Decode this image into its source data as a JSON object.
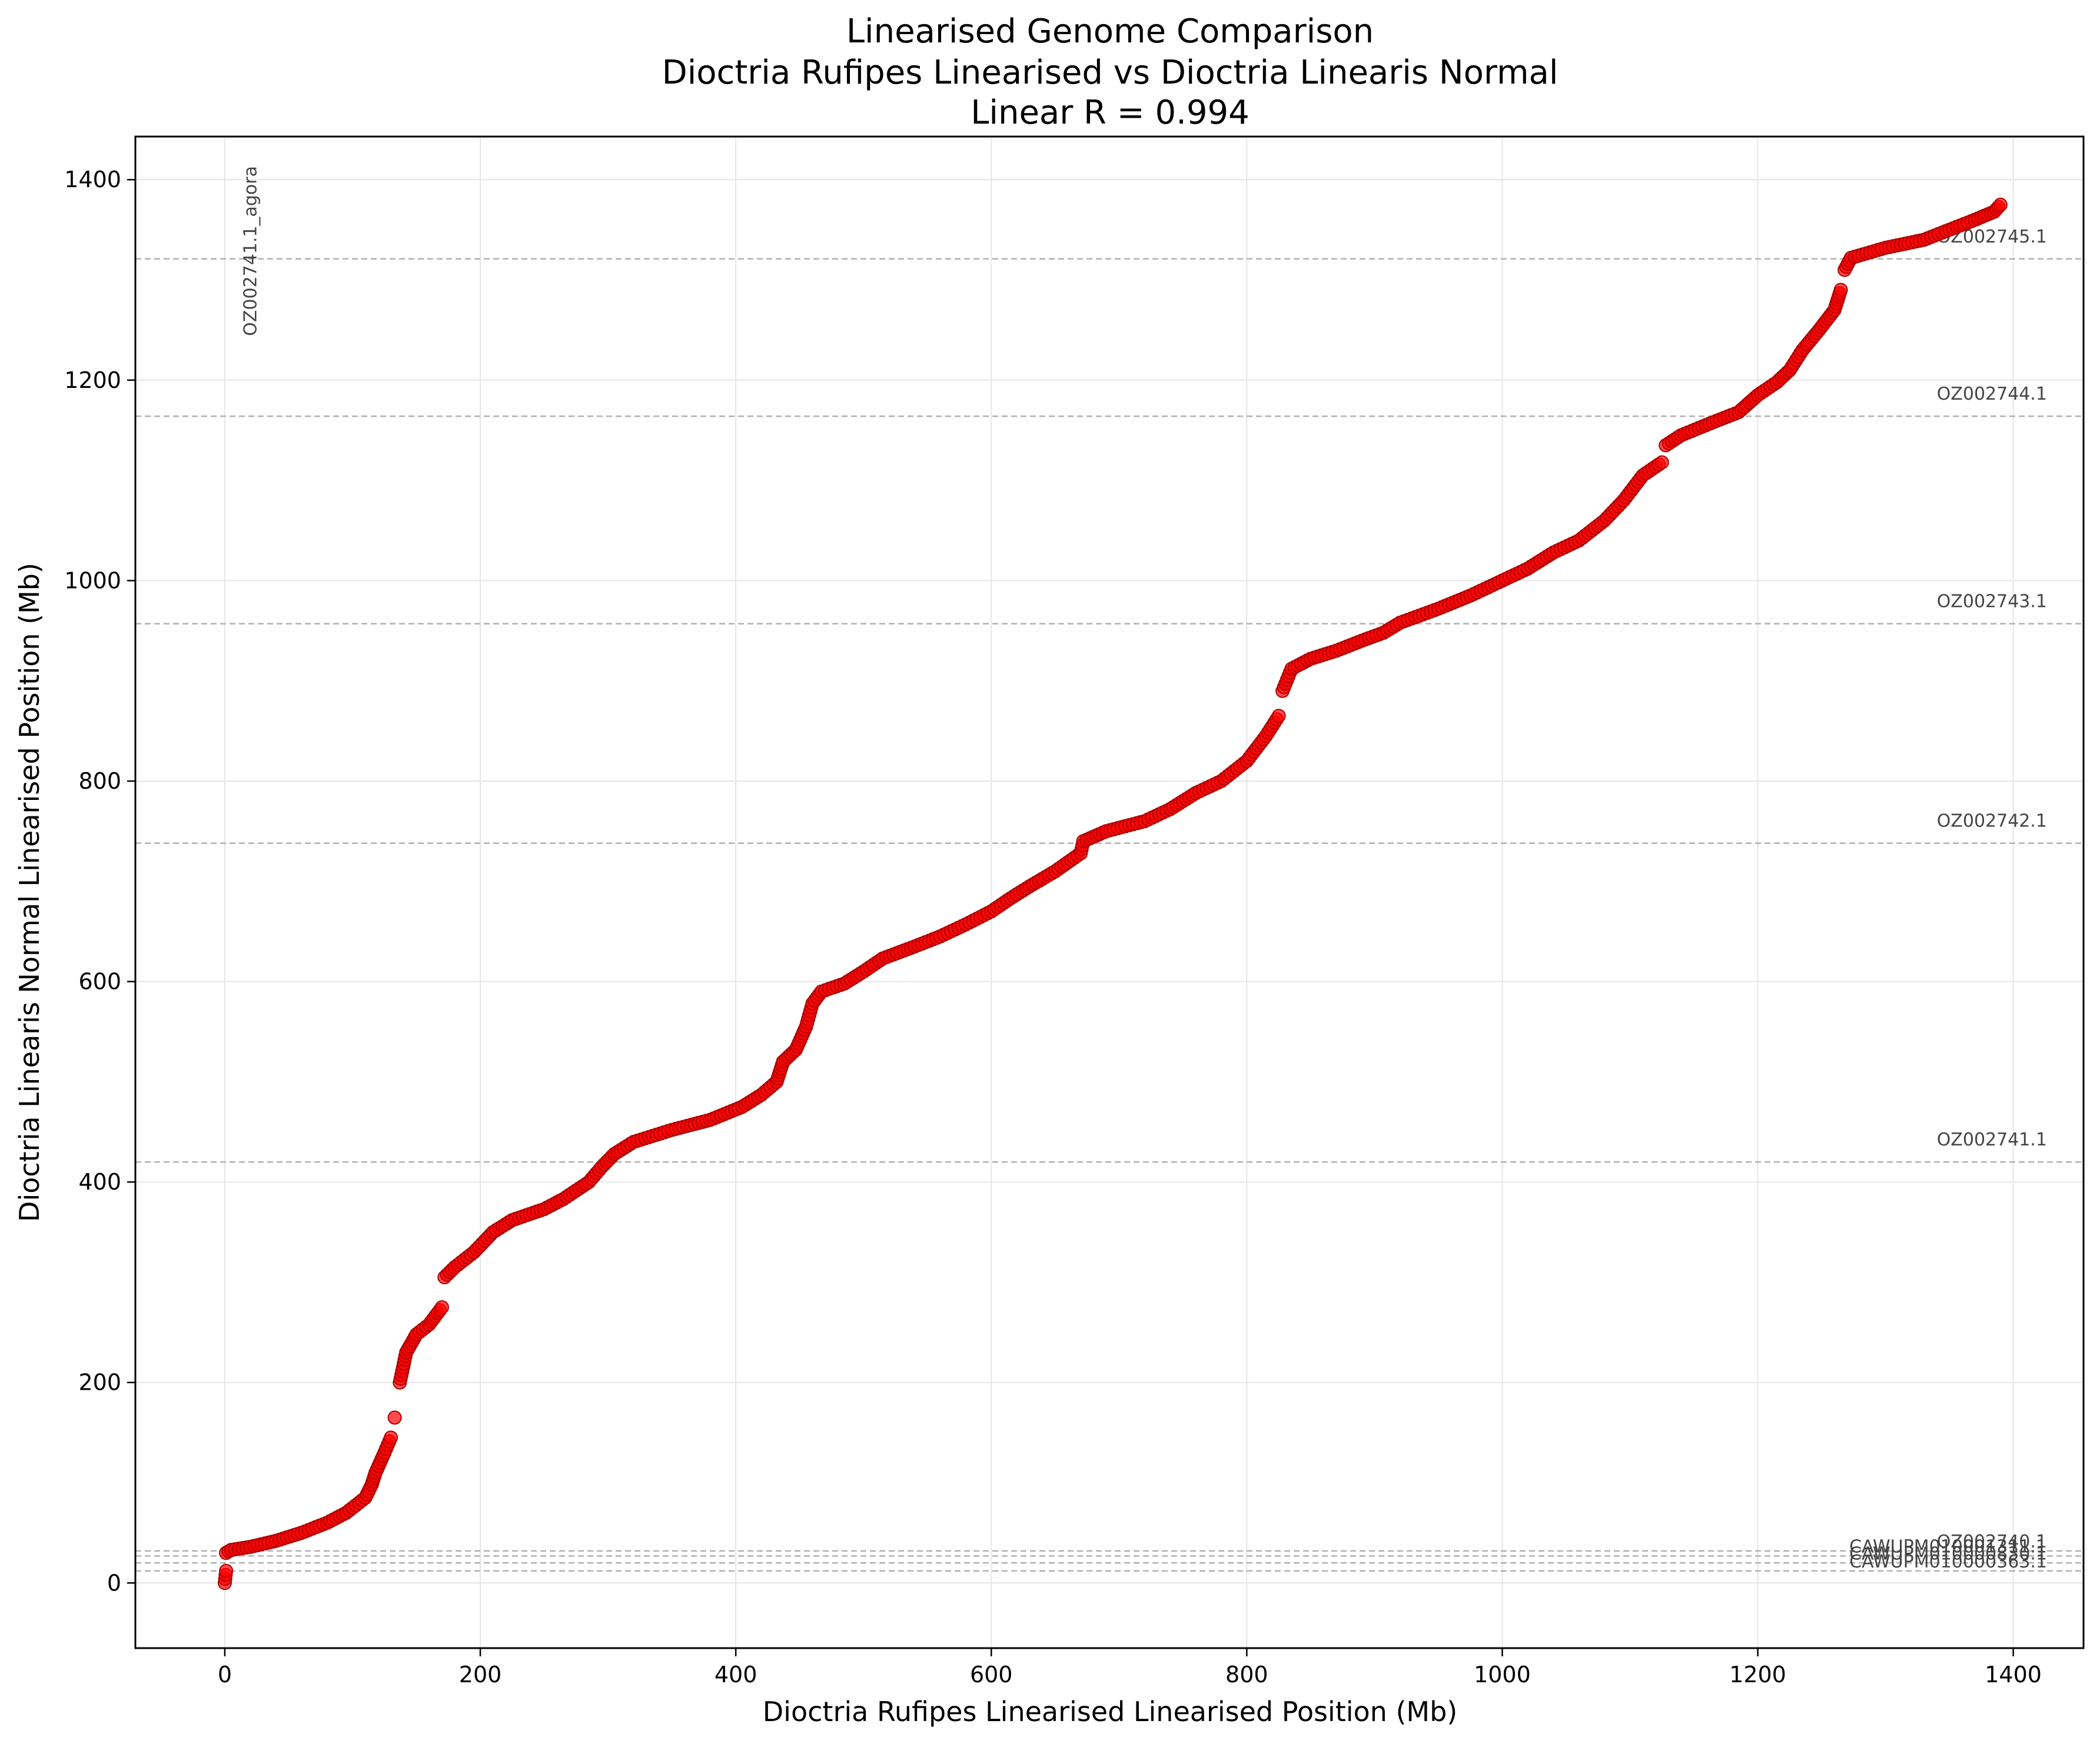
{
  "chart_data": {
    "type": "scatter",
    "title_lines": [
      "Linearised Genome Comparison",
      "Dioctria Rufipes Linearised vs Dioctria Linearis Normal",
      "Linear R = 0.994"
    ],
    "xlabel": "Dioctria Rufipes Linearised Linearised Position (Mb)",
    "ylabel": "Dioctria Linearis Normal Linearised Position (Mb)",
    "xlim": [
      -70,
      1455
    ],
    "ylim": [
      -65,
      1443
    ],
    "xticks": [
      0,
      200,
      400,
      600,
      800,
      1000,
      1200,
      1400
    ],
    "yticks": [
      0,
      200,
      400,
      600,
      800,
      1000,
      1200,
      1400
    ],
    "grid": true,
    "marker_color": "#ff0000",
    "vertical_reference": {
      "x": 20,
      "label": "OZ002741.1_agora"
    },
    "horizontal_references": [
      {
        "y": 1321,
        "label": "OZ002745.1"
      },
      {
        "y": 1164,
        "label": "OZ002744.1"
      },
      {
        "y": 957,
        "label": "OZ002743.1"
      },
      {
        "y": 738,
        "label": "OZ002742.1"
      },
      {
        "y": 420,
        "label": "OZ002741.1"
      },
      {
        "y": 32,
        "label": "OZ002740.1"
      },
      {
        "y": 27,
        "label": "CAWUPM010001311.1"
      },
      {
        "y": 20,
        "label": "CAWUPM010000830.1"
      },
      {
        "y": 12,
        "label": "CAWUPM010000363.1"
      }
    ],
    "series": [
      {
        "points": [
          [
            0,
            0
          ],
          [
            1,
            12
          ],
          [
            1,
            30
          ],
          [
            5,
            33
          ],
          [
            20,
            36
          ],
          [
            40,
            42
          ],
          [
            60,
            50
          ],
          [
            80,
            60
          ],
          [
            95,
            70
          ],
          [
            110,
            85
          ],
          [
            115,
            98
          ],
          [
            118,
            110
          ],
          [
            125,
            130
          ],
          [
            130,
            145
          ],
          [
            133,
            165
          ],
          [
            137,
            200
          ],
          [
            142,
            230
          ],
          [
            150,
            248
          ],
          [
            160,
            258
          ],
          [
            170,
            275
          ],
          [
            172,
            305
          ],
          [
            180,
            315
          ],
          [
            195,
            330
          ],
          [
            210,
            350
          ],
          [
            225,
            362
          ],
          [
            250,
            373
          ],
          [
            265,
            383
          ],
          [
            285,
            400
          ],
          [
            295,
            415
          ],
          [
            305,
            428
          ],
          [
            320,
            440
          ],
          [
            350,
            452
          ],
          [
            380,
            462
          ],
          [
            405,
            475
          ],
          [
            420,
            487
          ],
          [
            432,
            500
          ],
          [
            437,
            520
          ],
          [
            447,
            532
          ],
          [
            455,
            555
          ],
          [
            460,
            578
          ],
          [
            467,
            590
          ],
          [
            485,
            598
          ],
          [
            500,
            610
          ],
          [
            515,
            623
          ],
          [
            540,
            635
          ],
          [
            560,
            645
          ],
          [
            580,
            657
          ],
          [
            600,
            670
          ],
          [
            615,
            683
          ],
          [
            630,
            695
          ],
          [
            650,
            710
          ],
          [
            670,
            728
          ],
          [
            672,
            740
          ],
          [
            690,
            750
          ],
          [
            720,
            760
          ],
          [
            740,
            772
          ],
          [
            760,
            788
          ],
          [
            780,
            800
          ],
          [
            800,
            820
          ],
          [
            815,
            845
          ],
          [
            825,
            865
          ],
          [
            828,
            890
          ],
          [
            835,
            912
          ],
          [
            850,
            922
          ],
          [
            870,
            930
          ],
          [
            890,
            940
          ],
          [
            907,
            948
          ],
          [
            920,
            958
          ],
          [
            950,
            972
          ],
          [
            975,
            985
          ],
          [
            1000,
            1000
          ],
          [
            1020,
            1012
          ],
          [
            1040,
            1028
          ],
          [
            1060,
            1040
          ],
          [
            1080,
            1060
          ],
          [
            1095,
            1080
          ],
          [
            1110,
            1105
          ],
          [
            1125,
            1118
          ],
          [
            1128,
            1135
          ],
          [
            1140,
            1145
          ],
          [
            1165,
            1158
          ],
          [
            1185,
            1168
          ],
          [
            1200,
            1185
          ],
          [
            1215,
            1198
          ],
          [
            1225,
            1210
          ],
          [
            1235,
            1230
          ],
          [
            1248,
            1250
          ],
          [
            1260,
            1270
          ],
          [
            1265,
            1290
          ],
          [
            1268,
            1310
          ],
          [
            1273,
            1322
          ],
          [
            1300,
            1332
          ],
          [
            1330,
            1340
          ],
          [
            1350,
            1350
          ],
          [
            1370,
            1360
          ],
          [
            1385,
            1368
          ],
          [
            1390,
            1375
          ]
        ]
      }
    ]
  }
}
